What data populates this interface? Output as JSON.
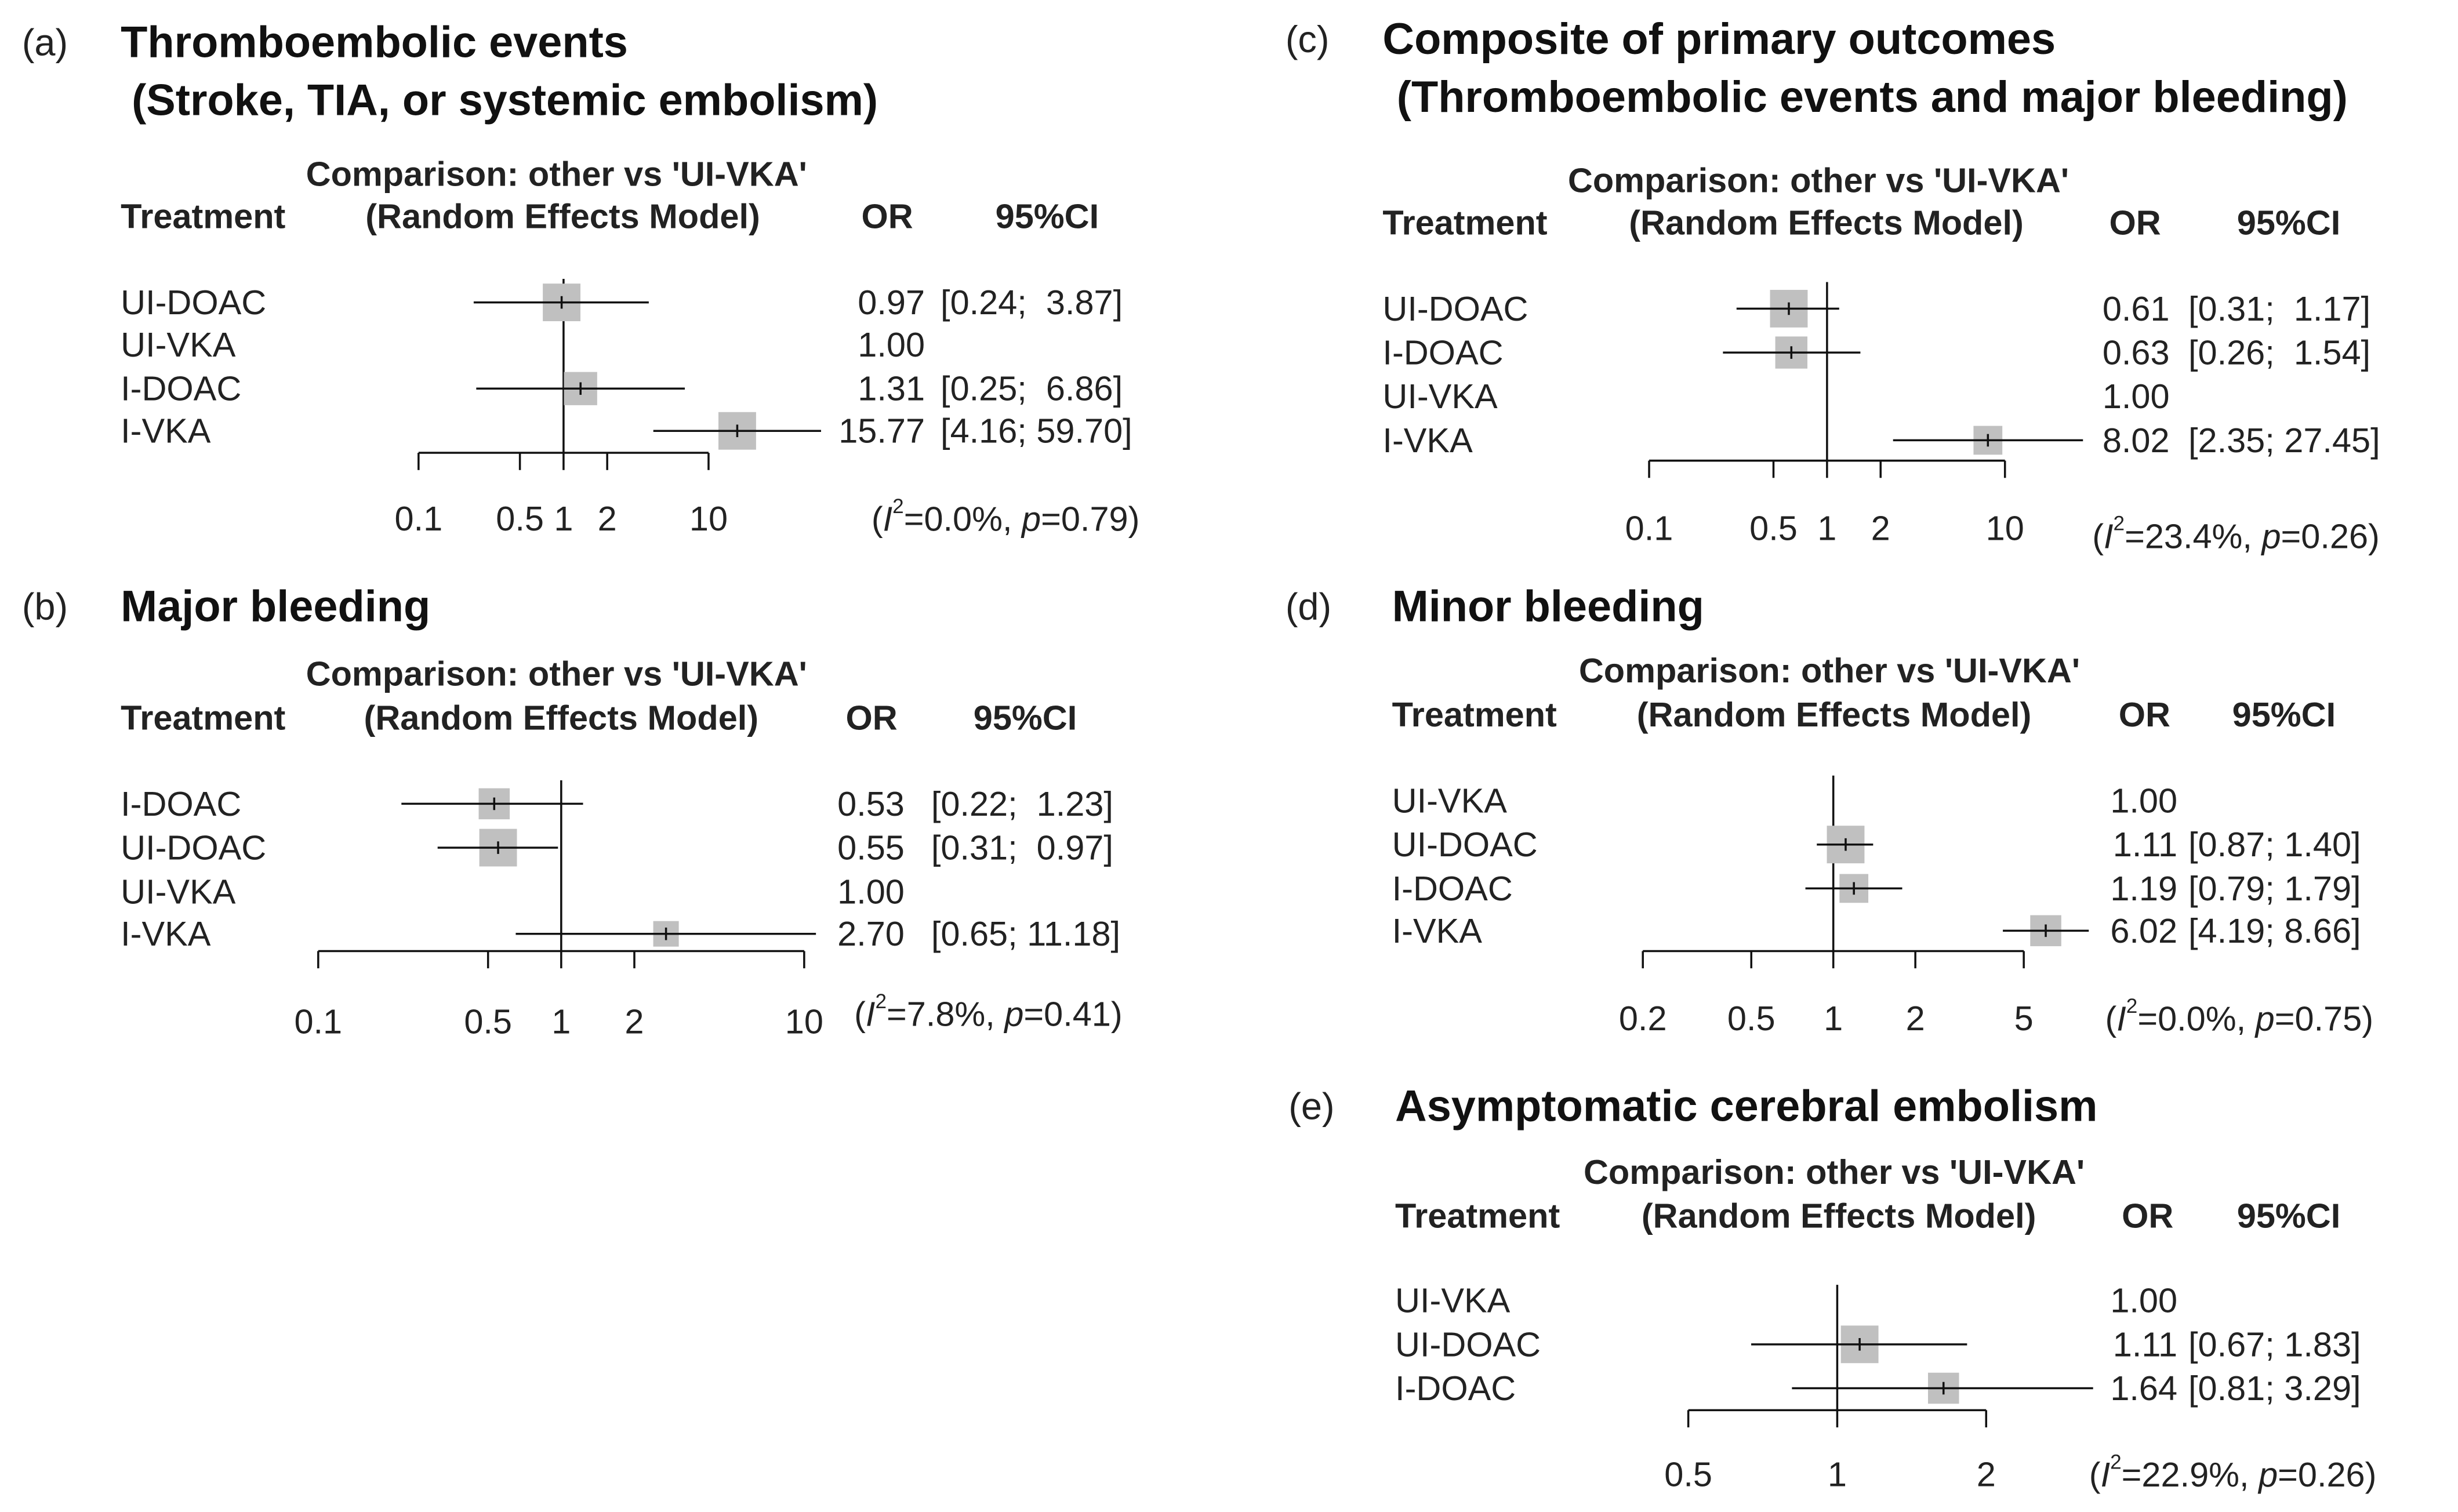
{
  "chart_data": [
    {
      "type": "forest",
      "panel": "(a)",
      "title": [
        "Thromboembolic events",
        "(Stroke, TIA, or systemic embolism)"
      ],
      "comparison": "Comparison: other vs 'UI-VKA'",
      "model": "(Random Effects Model)",
      "col_treatment": "Treatment",
      "col_or": "OR",
      "col_ci": "95%CI",
      "scale": "log",
      "xlim": [
        0.1,
        10
      ],
      "ticks": [
        {
          "v": 0.1,
          "label": "0.1"
        },
        {
          "v": 0.5,
          "label": "0.5"
        },
        {
          "v": 1,
          "label": "1"
        },
        {
          "v": 2,
          "label": "2"
        },
        {
          "v": 10,
          "label": "10"
        }
      ],
      "rows": [
        {
          "treatment": "UI-DOAC",
          "or": 0.97,
          "lo": 0.24,
          "hi": 3.87,
          "or_text": "0.97",
          "ci_text": "[0.24;  3.87]",
          "weight": 1.0
        },
        {
          "treatment": "UI-VKA",
          "or": 1.0,
          "or_text": "1.00",
          "ci_text": "",
          "reference": true
        },
        {
          "treatment": "I-DOAC",
          "or": 1.31,
          "lo": 0.25,
          "hi": 6.86,
          "or_text": "1.31",
          "ci_text": "[0.25;  6.86]",
          "weight": 0.8
        },
        {
          "treatment": "I-VKA",
          "or": 15.77,
          "lo": 4.16,
          "hi": 59.7,
          "or_text": "15.77",
          "ci_text": "[4.16; 59.70]",
          "weight": 1.0
        }
      ],
      "heterogeneity": {
        "i2": "0.0%",
        "p": "0.79"
      }
    },
    {
      "type": "forest",
      "panel": "(b)",
      "title": [
        "Major bleeding"
      ],
      "comparison": "Comparison: other vs 'UI-VKA'",
      "model": "(Random Effects Model)",
      "col_treatment": "Treatment",
      "col_or": "OR",
      "col_ci": "95%CI",
      "scale": "log",
      "xlim": [
        0.1,
        10
      ],
      "ticks": [
        {
          "v": 0.1,
          "label": "0.1"
        },
        {
          "v": 0.5,
          "label": "0.5"
        },
        {
          "v": 1,
          "label": "1"
        },
        {
          "v": 2,
          "label": "2"
        },
        {
          "v": 10,
          "label": "10"
        }
      ],
      "rows": [
        {
          "treatment": "I-DOAC",
          "or": 0.53,
          "lo": 0.22,
          "hi": 1.23,
          "or_text": "0.53",
          "ci_text": "[0.22;  1.23]",
          "weight": 0.7
        },
        {
          "treatment": "UI-DOAC",
          "or": 0.55,
          "lo": 0.31,
          "hi": 0.97,
          "or_text": "0.55",
          "ci_text": "[0.31;  0.97]",
          "weight": 1.0
        },
        {
          "treatment": "UI-VKA",
          "or": 1.0,
          "or_text": "1.00",
          "ci_text": "",
          "reference": true
        },
        {
          "treatment": "I-VKA",
          "or": 2.7,
          "lo": 0.65,
          "hi": 11.18,
          "or_text": "2.70",
          "ci_text": "[0.65; 11.18]",
          "weight": 0.45
        }
      ],
      "heterogeneity": {
        "i2": "7.8%",
        "p": "0.41"
      }
    },
    {
      "type": "forest",
      "panel": "(c)",
      "title": [
        "Composite of primary outcomes",
        "(Thromboembolic events and major bleeding)"
      ],
      "comparison": "Comparison: other vs 'UI-VKA'",
      "model": "(Random Effects Model)",
      "col_treatment": "Treatment",
      "col_or": "OR",
      "col_ci": "95%CI",
      "scale": "log",
      "xlim": [
        0.1,
        10
      ],
      "ticks": [
        {
          "v": 0.1,
          "label": "0.1"
        },
        {
          "v": 0.5,
          "label": "0.5"
        },
        {
          "v": 1,
          "label": "1"
        },
        {
          "v": 2,
          "label": "2"
        },
        {
          "v": 10,
          "label": "10"
        }
      ],
      "rows": [
        {
          "treatment": "UI-DOAC",
          "or": 0.61,
          "lo": 0.31,
          "hi": 1.17,
          "or_text": "0.61",
          "ci_text": "[0.31;  1.17]",
          "weight": 1.0
        },
        {
          "treatment": "I-DOAC",
          "or": 0.63,
          "lo": 0.26,
          "hi": 1.54,
          "or_text": "0.63",
          "ci_text": "[0.26;  1.54]",
          "weight": 0.75
        },
        {
          "treatment": "UI-VKA",
          "or": 1.0,
          "or_text": "1.00",
          "ci_text": "",
          "reference": true
        },
        {
          "treatment": "I-VKA",
          "or": 8.02,
          "lo": 2.35,
          "hi": 27.45,
          "or_text": "8.02",
          "ci_text": "[2.35; 27.45]",
          "weight": 0.6
        }
      ],
      "heterogeneity": {
        "i2": "23.4%",
        "p": "0.26"
      }
    },
    {
      "type": "forest",
      "panel": "(d)",
      "title": [
        "Minor bleeding"
      ],
      "comparison": "Comparison: other vs 'UI-VKA'",
      "model": "(Random Effects Model)",
      "col_treatment": "Treatment",
      "col_or": "OR",
      "col_ci": "95%CI",
      "scale": "log",
      "xlim": [
        0.2,
        5
      ],
      "ticks": [
        {
          "v": 0.2,
          "label": "0.2"
        },
        {
          "v": 0.5,
          "label": "0.5"
        },
        {
          "v": 1,
          "label": "1"
        },
        {
          "v": 2,
          "label": "2"
        },
        {
          "v": 5,
          "label": "5"
        }
      ],
      "rows": [
        {
          "treatment": "UI-VKA",
          "or": 1.0,
          "or_text": "1.00",
          "ci_text": "",
          "reference": true
        },
        {
          "treatment": "UI-DOAC",
          "or": 1.11,
          "lo": 0.87,
          "hi": 1.4,
          "or_text": "1.11",
          "ci_text": "[0.87; 1.40]",
          "weight": 1.0
        },
        {
          "treatment": "I-DOAC",
          "or": 1.19,
          "lo": 0.79,
          "hi": 1.79,
          "or_text": "1.19",
          "ci_text": "[0.79; 1.79]",
          "weight": 0.6
        },
        {
          "treatment": "I-VKA",
          "or": 6.02,
          "lo": 4.19,
          "hi": 8.66,
          "or_text": "6.02",
          "ci_text": "[4.19; 8.66]",
          "weight": 0.7
        }
      ],
      "heterogeneity": {
        "i2": "0.0%",
        "p": "0.75"
      }
    },
    {
      "type": "forest",
      "panel": "(e)",
      "title": [
        "Asymptomatic cerebral embolism"
      ],
      "comparison": "Comparison: other vs 'UI-VKA'",
      "model": "(Random Effects Model)",
      "col_treatment": "Treatment",
      "col_or": "OR",
      "col_ci": "95%CI",
      "scale": "log",
      "xlim": [
        0.5,
        2
      ],
      "ticks": [
        {
          "v": 0.5,
          "label": "0.5"
        },
        {
          "v": 1,
          "label": "1"
        },
        {
          "v": 2,
          "label": "2"
        }
      ],
      "rows": [
        {
          "treatment": "UI-VKA",
          "or": 1.0,
          "or_text": "1.00",
          "ci_text": "",
          "reference": true
        },
        {
          "treatment": "UI-DOAC",
          "or": 1.11,
          "lo": 0.67,
          "hi": 1.83,
          "or_text": "1.11",
          "ci_text": "[0.67; 1.83]",
          "weight": 1.0
        },
        {
          "treatment": "I-DOAC",
          "or": 1.64,
          "lo": 0.81,
          "hi": 3.29,
          "or_text": "1.64",
          "ci_text": "[0.81; 3.29]",
          "weight": 0.7
        }
      ],
      "heterogeneity": {
        "i2": "22.9%",
        "p": "0.26"
      }
    }
  ],
  "colors": {
    "box": "#c0c0c0",
    "line": "#111111"
  }
}
